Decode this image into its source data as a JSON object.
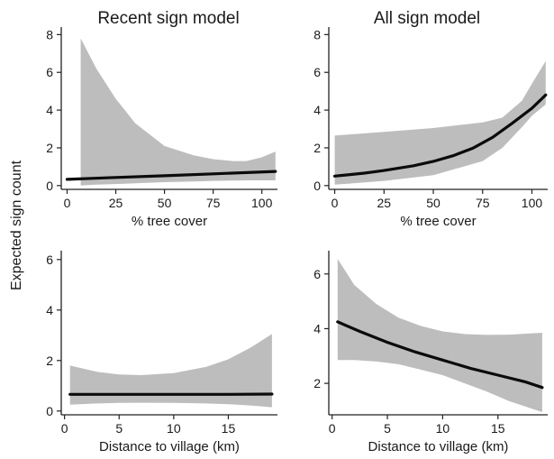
{
  "figure": {
    "ylabel": "Expected sign count"
  },
  "chart_data": [
    {
      "type": "line",
      "title": "Recent sign model",
      "xlabel": "% tree cover",
      "ylabel": "",
      "xlim": [
        -3,
        108
      ],
      "ylim": [
        -0.2,
        8.4
      ],
      "xticks": [
        0,
        25,
        50,
        75,
        100
      ],
      "yticks": [
        0,
        2,
        4,
        6,
        8
      ],
      "grid": false,
      "series": [
        {
          "kind": "ci_band",
          "x": [
            7,
            15,
            25,
            35,
            50,
            65,
            75,
            85,
            92,
            100,
            107
          ],
          "upper": [
            7.8,
            6.2,
            4.6,
            3.3,
            2.1,
            1.6,
            1.4,
            1.3,
            1.3,
            1.5,
            1.8
          ],
          "lower": [
            0.0,
            0.05,
            0.08,
            0.12,
            0.18,
            0.22,
            0.25,
            0.27,
            0.28,
            0.28,
            0.28
          ]
        },
        {
          "kind": "fit",
          "x": [
            0,
            25,
            50,
            75,
            107
          ],
          "y": [
            0.33,
            0.43,
            0.52,
            0.62,
            0.75
          ]
        }
      ]
    },
    {
      "type": "line",
      "title": "All sign model",
      "xlabel": "% tree cover",
      "ylabel": "",
      "xlim": [
        -3,
        108
      ],
      "ylim": [
        -0.2,
        8.4
      ],
      "xticks": [
        0,
        25,
        50,
        75,
        100
      ],
      "yticks": [
        0,
        2,
        4,
        6,
        8
      ],
      "grid": false,
      "series": [
        {
          "kind": "ci_band",
          "x": [
            0,
            25,
            50,
            75,
            85,
            95,
            100,
            107
          ],
          "upper": [
            2.65,
            2.85,
            3.05,
            3.35,
            3.6,
            4.5,
            5.4,
            6.6
          ],
          "lower": [
            0.05,
            0.25,
            0.55,
            1.3,
            2.0,
            3.1,
            3.7,
            4.3
          ]
        },
        {
          "kind": "fit",
          "x": [
            0,
            15,
            25,
            40,
            50,
            60,
            70,
            80,
            90,
            100,
            107
          ],
          "y": [
            0.5,
            0.66,
            0.8,
            1.05,
            1.28,
            1.58,
            1.98,
            2.55,
            3.3,
            4.1,
            4.8
          ]
        }
      ]
    },
    {
      "type": "line",
      "title": "",
      "xlabel": "Distance to village (km)",
      "ylabel": "",
      "xlim": [
        -0.3,
        19.5
      ],
      "ylim": [
        -0.15,
        6.35
      ],
      "xticks": [
        0,
        5,
        10,
        15
      ],
      "yticks": [
        0,
        2,
        4,
        6
      ],
      "grid": false,
      "series": [
        {
          "kind": "ci_band",
          "x": [
            0.5,
            3,
            5,
            7,
            10,
            13,
            15,
            17,
            19
          ],
          "upper": [
            1.8,
            1.55,
            1.45,
            1.42,
            1.5,
            1.75,
            2.05,
            2.5,
            3.05
          ],
          "lower": [
            0.25,
            0.3,
            0.32,
            0.33,
            0.32,
            0.3,
            0.27,
            0.22,
            0.15
          ]
        },
        {
          "kind": "fit",
          "x": [
            0.5,
            5,
            10,
            15,
            19
          ],
          "y": [
            0.66,
            0.66,
            0.66,
            0.66,
            0.67
          ]
        }
      ]
    },
    {
      "type": "line",
      "title": "",
      "xlabel": "Distance to village (km)",
      "ylabel": "",
      "xlim": [
        -0.3,
        19.5
      ],
      "ylim": [
        0.85,
        6.85
      ],
      "xticks": [
        0,
        5,
        10,
        15
      ],
      "yticks": [
        2,
        4,
        6
      ],
      "grid": false,
      "series": [
        {
          "kind": "ci_band",
          "x": [
            0.5,
            2,
            4,
            6,
            8,
            10,
            12,
            14,
            16,
            19
          ],
          "upper": [
            6.55,
            5.6,
            4.9,
            4.4,
            4.1,
            3.9,
            3.8,
            3.77,
            3.78,
            3.85
          ],
          "lower": [
            2.85,
            2.85,
            2.8,
            2.7,
            2.5,
            2.3,
            2.0,
            1.7,
            1.35,
            0.95
          ]
        },
        {
          "kind": "fit",
          "x": [
            0.5,
            2.5,
            5,
            7.5,
            10,
            12.5,
            15,
            17.5,
            19
          ],
          "y": [
            4.25,
            3.9,
            3.5,
            3.15,
            2.85,
            2.55,
            2.3,
            2.05,
            1.85
          ]
        }
      ]
    }
  ]
}
